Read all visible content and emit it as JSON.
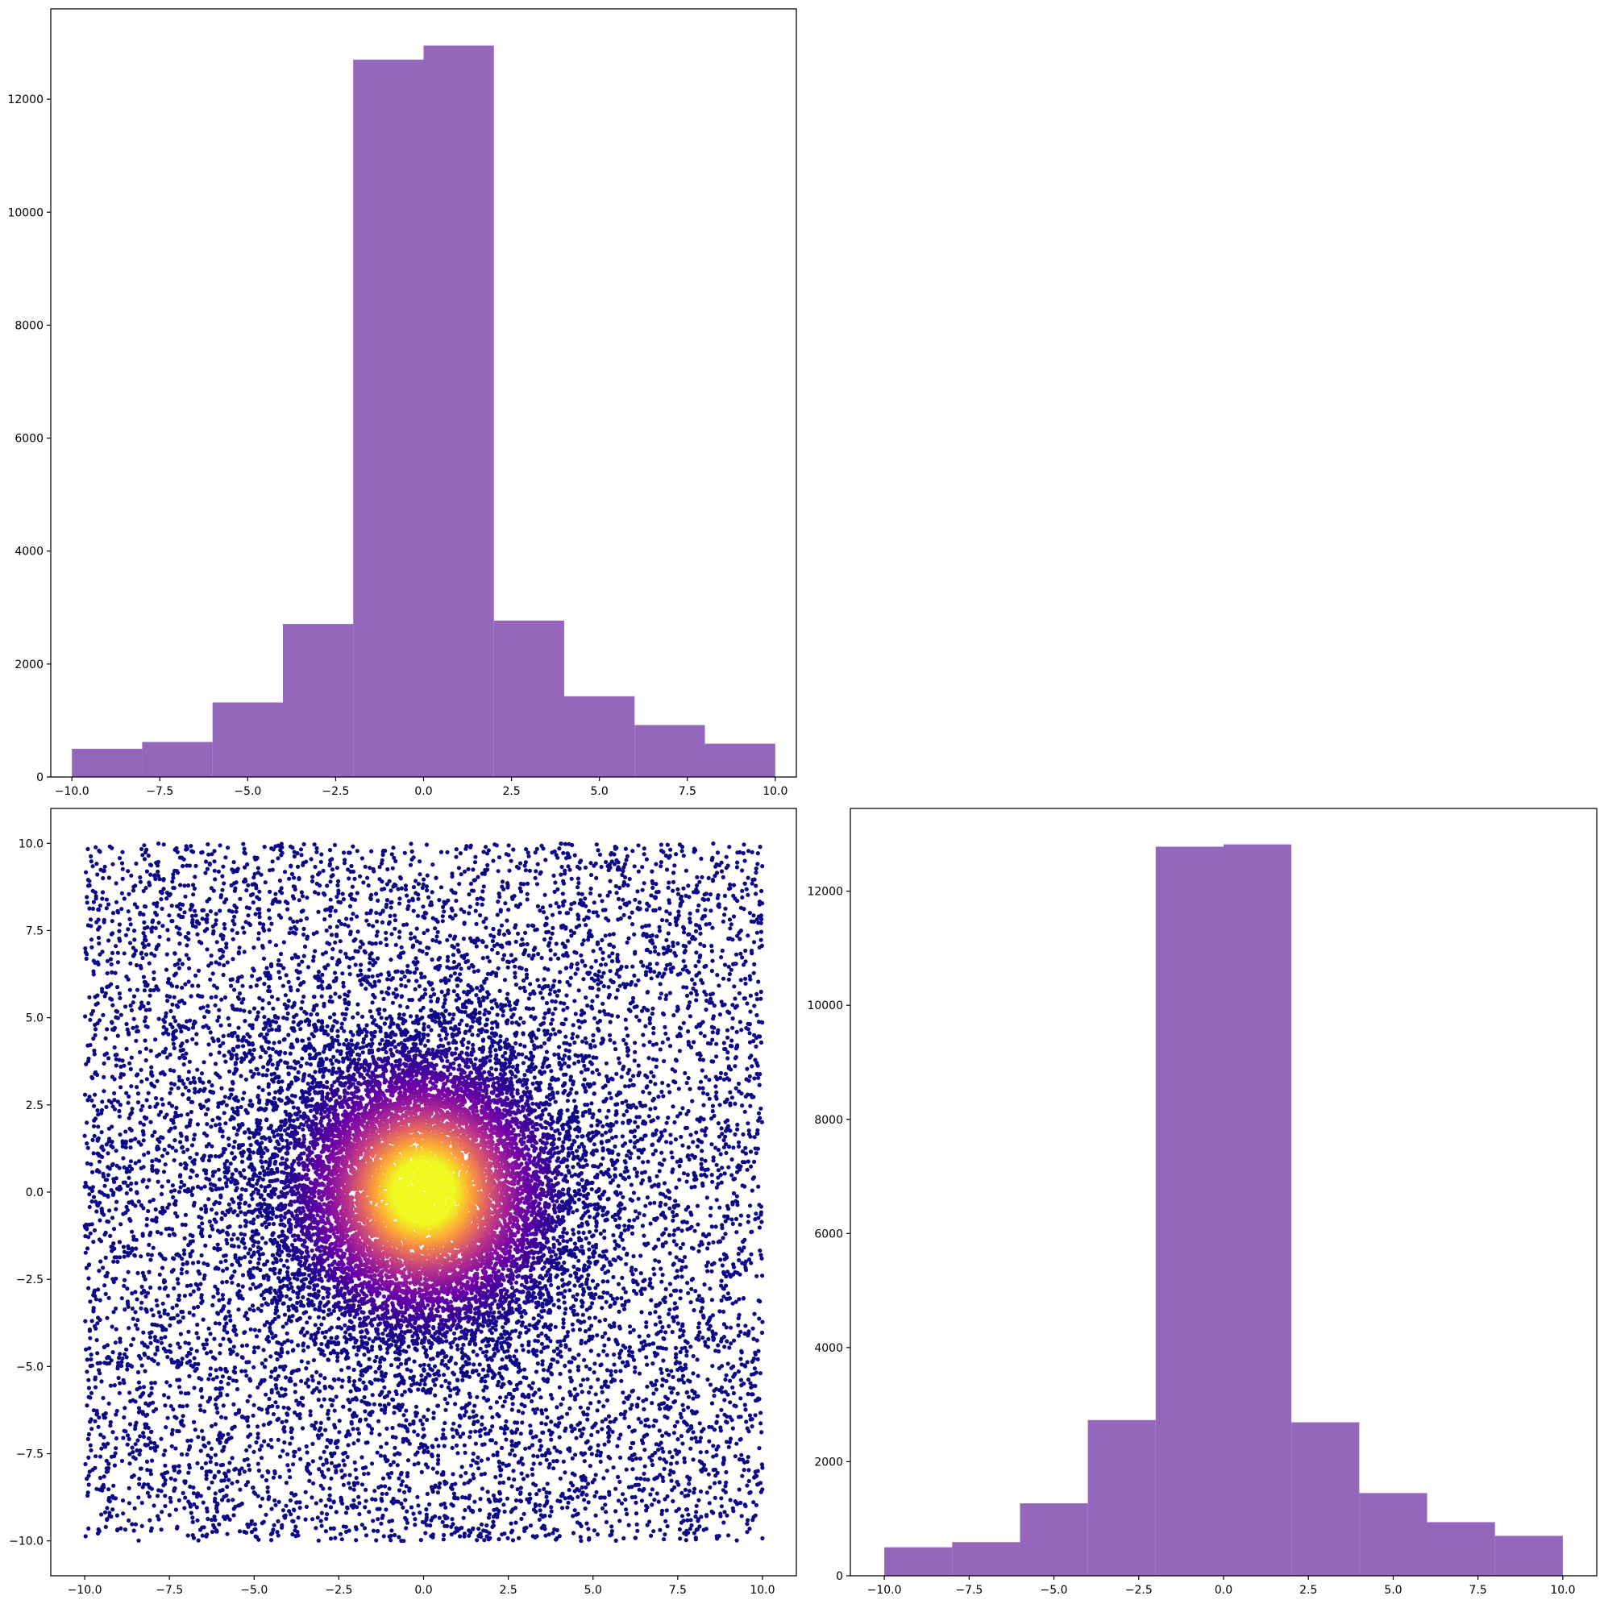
{
  "chart_data": [
    {
      "id": "top-left-histogram",
      "type": "bar",
      "bin_edges": [
        -10,
        -8,
        -6,
        -4,
        -2,
        0,
        2,
        4,
        6,
        8,
        10
      ],
      "values": [
        500,
        620,
        1320,
        2710,
        12700,
        12950,
        2770,
        1430,
        920,
        590
      ],
      "xlim": [
        -10.6,
        10.6
      ],
      "ylim": [
        0,
        13600
      ],
      "xticks": [
        -10,
        -7.5,
        -5,
        -2.5,
        0,
        2.5,
        5,
        7.5,
        10
      ],
      "xtick_labels": [
        "−10.0",
        "−7.5",
        "−5.0",
        "−2.5",
        "0.0",
        "2.5",
        "5.0",
        "7.5",
        "10.0"
      ],
      "yticks": [
        0,
        2000,
        4000,
        6000,
        8000,
        10000,
        12000
      ],
      "ytick_labels": [
        "0",
        "2000",
        "4000",
        "6000",
        "8000",
        "10000",
        "12000"
      ],
      "color": "#9467bd",
      "grid": false
    },
    {
      "id": "bottom-left-scatter",
      "type": "scatter",
      "description_of_points": "about 20000 points uniformly spread over [-10,10] x [-10,10] plus a dense concentration around the origin; color encodes density",
      "n_uniform_points": 9000,
      "n_central_points": 11000,
      "central_spread": 2.2,
      "xlim": [
        -11,
        11
      ],
      "ylim": [
        -11,
        11
      ],
      "xticks": [
        -10,
        -7.5,
        -5,
        -2.5,
        0,
        2.5,
        5,
        7.5,
        10
      ],
      "xtick_labels": [
        "−10.0",
        "−7.5",
        "−5.0",
        "−2.5",
        "0.0",
        "2.5",
        "5.0",
        "7.5",
        "10.0"
      ],
      "yticks": [
        -10,
        -7.5,
        -5,
        -2.5,
        0,
        2.5,
        5,
        7.5,
        10
      ],
      "ytick_labels": [
        "−10.0",
        "−7.5",
        "−5.0",
        "−2.5",
        "0.0",
        "2.5",
        "5.0",
        "7.5",
        "10.0"
      ],
      "colormap": "plasma",
      "colormap_stops": [
        "#0d0887",
        "#6a00a8",
        "#b12a90",
        "#e16462",
        "#fca636",
        "#f0f921"
      ],
      "grid": false
    },
    {
      "id": "bottom-right-histogram",
      "type": "bar",
      "bin_edges": [
        -10,
        -8,
        -6,
        -4,
        -2,
        0,
        2,
        4,
        6,
        8,
        10
      ],
      "values": [
        500,
        590,
        1270,
        2730,
        12780,
        12820,
        2690,
        1450,
        940,
        700
      ],
      "xlim": [
        -11,
        11
      ],
      "ylim": [
        0,
        13450
      ],
      "xticks": [
        -10,
        -7.5,
        -5,
        -2.5,
        0,
        2.5,
        5,
        7.5,
        10
      ],
      "xtick_labels": [
        "−10.0",
        "−7.5",
        "−5.0",
        "−2.5",
        "0.0",
        "2.5",
        "5.0",
        "7.5",
        "10.0"
      ],
      "yticks": [
        0,
        2000,
        4000,
        6000,
        8000,
        10000,
        12000
      ],
      "ytick_labels": [
        "0",
        "2000",
        "4000",
        "6000",
        "8000",
        "10000",
        "12000"
      ],
      "color": "#9467bd",
      "grid": false
    }
  ]
}
